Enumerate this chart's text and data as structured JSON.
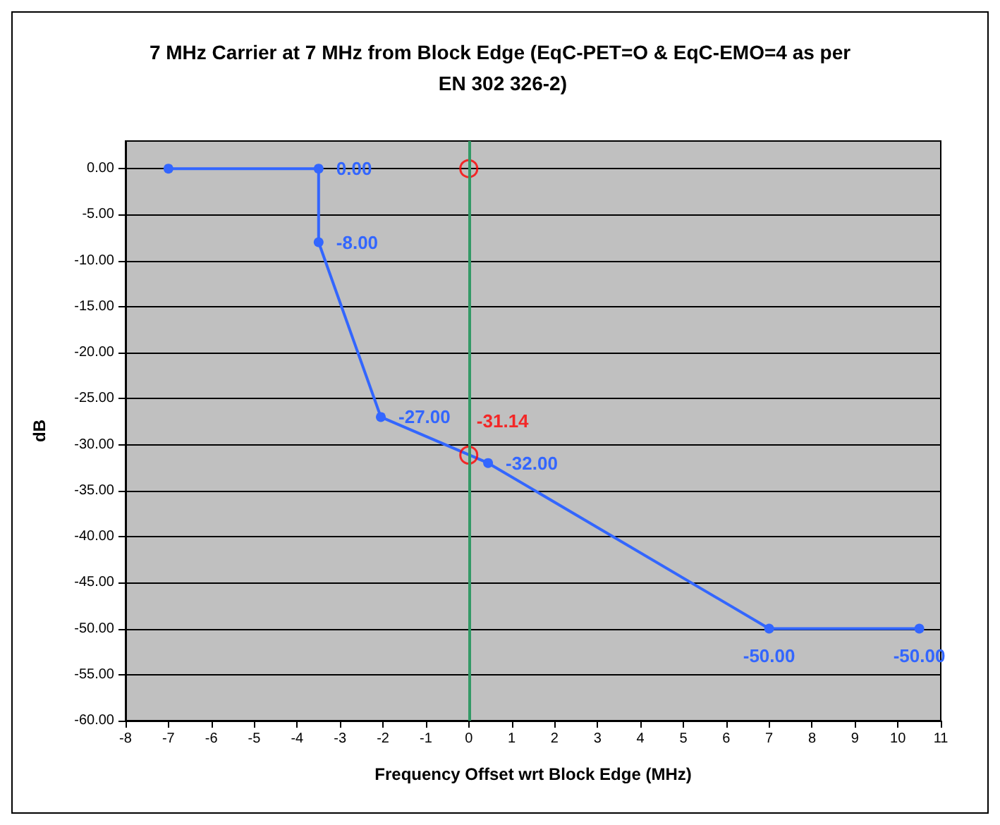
{
  "chart_data": {
    "type": "line",
    "title": "7 MHz Carrier at 7 MHz from Block Edge (EqC-PET=O & EqC-EMO=4 as per EN 302 326-2)",
    "xlabel": "Frequency Offset wrt Block Edge (MHz)",
    "ylabel": "dB",
    "xlim": [
      -8,
      11
    ],
    "xticks": [
      -8,
      -7,
      -6,
      -5,
      -4,
      -3,
      -2,
      -1,
      0,
      1,
      2,
      3,
      4,
      5,
      6,
      7,
      8,
      9,
      10,
      11
    ],
    "ylim": [
      -60,
      3
    ],
    "yticks": [
      {
        "value": -60,
        "label": "-60.00"
      },
      {
        "value": -55,
        "label": "-55.00"
      },
      {
        "value": -50,
        "label": "-50.00"
      },
      {
        "value": -45,
        "label": "-45.00"
      },
      {
        "value": -40,
        "label": "-40.00"
      },
      {
        "value": -35,
        "label": "-35.00"
      },
      {
        "value": -30,
        "label": "-30.00"
      },
      {
        "value": -25,
        "label": "-25.00"
      },
      {
        "value": -20,
        "label": "-20.00"
      },
      {
        "value": -15,
        "label": "-15.00"
      },
      {
        "value": -10,
        "label": "-10.00"
      },
      {
        "value": -5,
        "label": "-5.00"
      },
      {
        "value": 0,
        "label": "0.00"
      }
    ],
    "grid": "y",
    "marker": "circle",
    "line_style": "solid",
    "series": [
      {
        "color": "#3366ff",
        "x": [
          -7,
          -3.5,
          -3.5,
          -2.05,
          0.45,
          7,
          10.5
        ],
        "values": [
          0,
          0,
          -8,
          -27,
          -32,
          -50,
          -50
        ],
        "value_labels": [
          null,
          "0.00",
          "-8.00",
          "-27.00",
          "-32.00",
          "-50.00",
          "-50.00"
        ]
      },
      {
        "type": "scatter",
        "color": "#ff0000",
        "x": [
          0,
          0
        ],
        "values": [
          0,
          -31.14
        ],
        "value_labels": [
          null,
          "-31.14"
        ]
      }
    ],
    "ref_lines": [
      {
        "axis": "x",
        "value": 0,
        "color": "#339966",
        "line_style": "solid"
      }
    ]
  }
}
